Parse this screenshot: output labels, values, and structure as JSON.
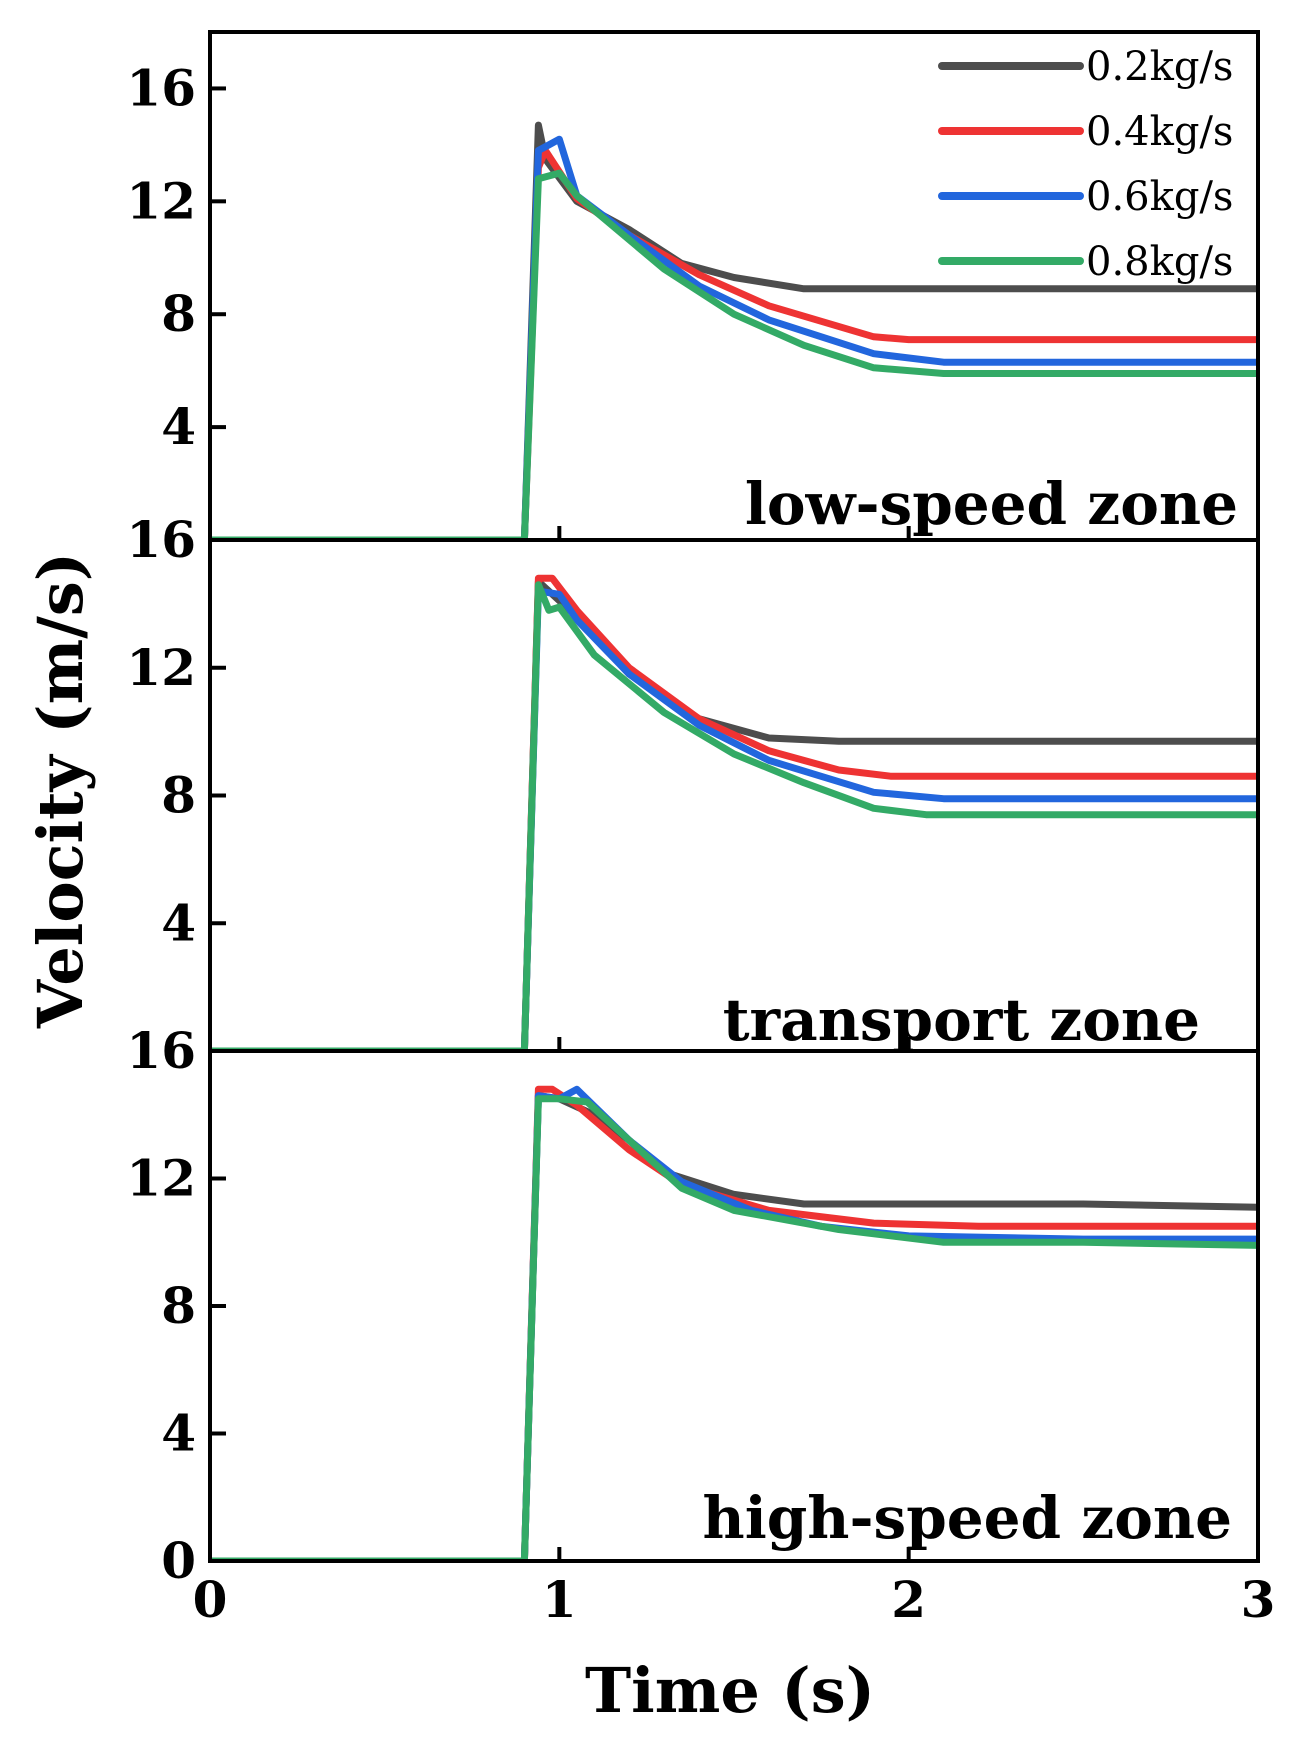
{
  "chart_data": {
    "type": "line",
    "xlabel": "Time (s)",
    "ylabel": "Velocity (m/s)",
    "xlim": [
      0,
      3
    ],
    "x_ticks": [
      0,
      1,
      2,
      3
    ],
    "colors": {
      "0.2kg/s": "#4d4d4d",
      "0.4kg/s": "#ee3333",
      "0.6kg/s": "#2266dd",
      "0.8kg/s": "#33aa66"
    },
    "legend": {
      "position": "top-right",
      "entries": [
        "0.2kg/s",
        "0.4kg/s",
        "0.6kg/s",
        "0.8kg/s"
      ]
    },
    "panels": [
      {
        "zone_label": "low-speed zone",
        "ylim": [
          0,
          18
        ],
        "y_ticks": [
          {
            "value": 4,
            "label": "4"
          },
          {
            "value": 8,
            "label": "8"
          },
          {
            "value": 12,
            "label": "12"
          },
          {
            "value": 16,
            "label": "16"
          }
        ],
        "series": [
          {
            "name": "0.2kg/s",
            "x": [
              0,
              0.9,
              0.94,
              0.96,
              1.05,
              1.2,
              1.35,
              1.5,
              1.7,
              2.0,
              2.5,
              3.0
            ],
            "values": [
              0,
              0,
              14.7,
              13.5,
              12.0,
              11.0,
              9.8,
              9.3,
              8.9,
              8.9,
              8.9,
              8.9
            ]
          },
          {
            "name": "0.4kg/s",
            "x": [
              0,
              0.9,
              0.94,
              0.96,
              1.05,
              1.2,
              1.4,
              1.6,
              1.9,
              2.0,
              2.5,
              3.0
            ],
            "values": [
              0,
              0,
              13.2,
              13.8,
              12.1,
              10.8,
              9.4,
              8.3,
              7.2,
              7.1,
              7.1,
              7.1
            ]
          },
          {
            "name": "0.6kg/s",
            "x": [
              0,
              0.9,
              0.94,
              0.97,
              1.0,
              1.05,
              1.2,
              1.4,
              1.6,
              1.9,
              2.1,
              2.5,
              3.0
            ],
            "values": [
              0,
              0,
              13.8,
              14.0,
              14.2,
              12.2,
              10.8,
              9.0,
              7.8,
              6.6,
              6.3,
              6.3,
              6.3
            ]
          },
          {
            "name": "0.8kg/s",
            "x": [
              0,
              0.9,
              0.94,
              1.0,
              1.05,
              1.3,
              1.5,
              1.7,
              1.9,
              2.1,
              2.5,
              3.0
            ],
            "values": [
              0,
              0,
              12.8,
              13.0,
              12.2,
              9.6,
              8.0,
              6.9,
              6.1,
              5.9,
              5.9,
              5.9
            ]
          }
        ]
      },
      {
        "zone_label": "transport zone",
        "ylim": [
          0,
          16
        ],
        "y_ticks": [
          {
            "value": 4,
            "label": "4"
          },
          {
            "value": 8,
            "label": "8"
          },
          {
            "value": 12,
            "label": "12"
          },
          {
            "value": 16,
            "label": "16"
          }
        ],
        "series": [
          {
            "name": "0.2kg/s",
            "x": [
              0,
              0.9,
              0.94,
              0.96,
              1.05,
              1.2,
              1.4,
              1.6,
              1.8,
              2.0,
              2.5,
              3.0
            ],
            "values": [
              0,
              0,
              14.7,
              14.5,
              13.6,
              11.8,
              10.4,
              9.8,
              9.7,
              9.7,
              9.7,
              9.7
            ]
          },
          {
            "name": "0.4kg/s",
            "x": [
              0,
              0.9,
              0.94,
              0.98,
              1.05,
              1.2,
              1.4,
              1.6,
              1.8,
              1.95,
              2.5,
              3.0
            ],
            "values": [
              0,
              0,
              14.8,
              14.8,
              13.8,
              12.0,
              10.4,
              9.4,
              8.8,
              8.6,
              8.6,
              8.6
            ]
          },
          {
            "name": "0.6kg/s",
            "x": [
              0,
              0.9,
              0.94,
              1.0,
              1.05,
              1.2,
              1.4,
              1.6,
              1.9,
              2.1,
              2.5,
              3.0
            ],
            "values": [
              0,
              0,
              14.4,
              14.3,
              13.5,
              11.8,
              10.2,
              9.1,
              8.1,
              7.9,
              7.9,
              7.9
            ]
          },
          {
            "name": "0.8kg/s",
            "x": [
              0,
              0.9,
              0.94,
              0.97,
              1.0,
              1.1,
              1.3,
              1.5,
              1.7,
              1.9,
              2.05,
              2.5,
              3.0
            ],
            "values": [
              0,
              0,
              14.6,
              13.8,
              13.9,
              12.4,
              10.6,
              9.3,
              8.4,
              7.6,
              7.4,
              7.4,
              7.4
            ]
          }
        ]
      },
      {
        "zone_label": "high-speed zone",
        "ylim": [
          0,
          16
        ],
        "y_ticks": [
          {
            "value": 0,
            "label": "0"
          },
          {
            "value": 4,
            "label": "4"
          },
          {
            "value": 8,
            "label": "8"
          },
          {
            "value": 12,
            "label": "12"
          },
          {
            "value": 16,
            "label": "16"
          }
        ],
        "series": [
          {
            "name": "0.2kg/s",
            "x": [
              0,
              0.9,
              0.94,
              1.0,
              1.1,
              1.2,
              1.3,
              1.5,
              1.7,
              2.0,
              2.5,
              3.0
            ],
            "values": [
              0,
              0,
              14.6,
              14.5,
              14.0,
              13.2,
              12.2,
              11.5,
              11.2,
              11.2,
              11.2,
              11.1
            ]
          },
          {
            "name": "0.4kg/s",
            "x": [
              0,
              0.9,
              0.94,
              0.98,
              1.05,
              1.2,
              1.35,
              1.6,
              1.9,
              2.2,
              2.5,
              3.0
            ],
            "values": [
              0,
              0,
              14.8,
              14.8,
              14.3,
              12.9,
              11.8,
              11.0,
              10.6,
              10.5,
              10.5,
              10.5
            ]
          },
          {
            "name": "0.6kg/s",
            "x": [
              0,
              0.9,
              0.94,
              1.0,
              1.05,
              1.2,
              1.35,
              1.55,
              1.75,
              2.0,
              2.5,
              3.0
            ],
            "values": [
              0,
              0,
              14.6,
              14.5,
              14.8,
              13.2,
              11.9,
              11.0,
              10.5,
              10.2,
              10.1,
              10.1
            ]
          },
          {
            "name": "0.8kg/s",
            "x": [
              0,
              0.9,
              0.94,
              1.0,
              1.08,
              1.2,
              1.35,
              1.5,
              1.8,
              2.1,
              2.5,
              3.0
            ],
            "values": [
              0,
              0,
              14.5,
              14.5,
              14.4,
              13.2,
              11.7,
              11.0,
              10.4,
              10.0,
              10.0,
              9.9
            ]
          }
        ]
      }
    ]
  }
}
